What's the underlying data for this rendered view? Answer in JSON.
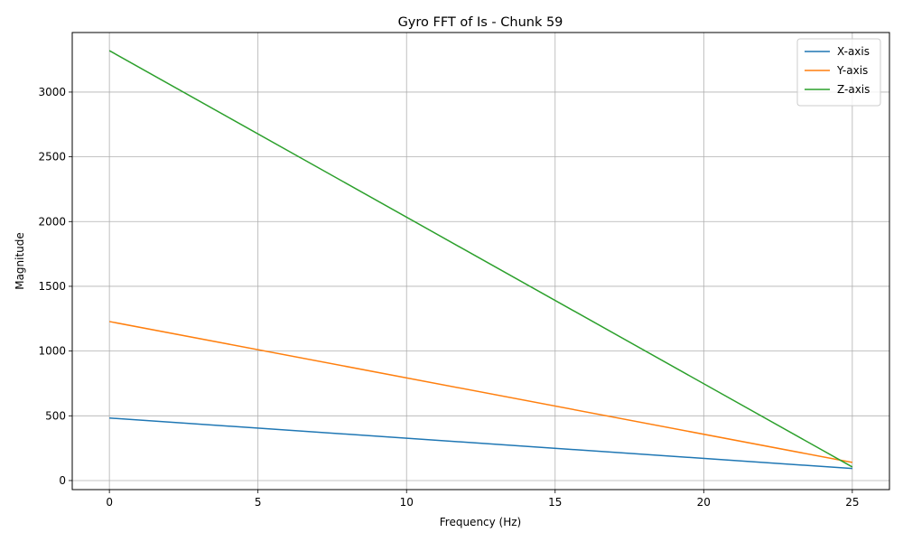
{
  "chart_data": {
    "type": "line",
    "title": "Gyro FFT of Is - Chunk 59",
    "xlabel": "Frequency (Hz)",
    "ylabel": "Magnitude",
    "xlim": [
      -1.25,
      26.25
    ],
    "ylim": [
      -70,
      3460
    ],
    "xticks": [
      0,
      5,
      10,
      15,
      20,
      25
    ],
    "yticks": [
      0,
      500,
      1000,
      1500,
      2000,
      2500,
      3000
    ],
    "grid": true,
    "legend_position": "top-right",
    "x": [
      0,
      25
    ],
    "series": [
      {
        "name": "X-axis",
        "color": "#1f77b4",
        "values": [
          483,
          93
        ]
      },
      {
        "name": "Y-axis",
        "color": "#ff7f0e",
        "values": [
          1228,
          140
        ]
      },
      {
        "name": "Z-axis",
        "color": "#2ca02c",
        "values": [
          3320,
          105
        ]
      }
    ]
  }
}
